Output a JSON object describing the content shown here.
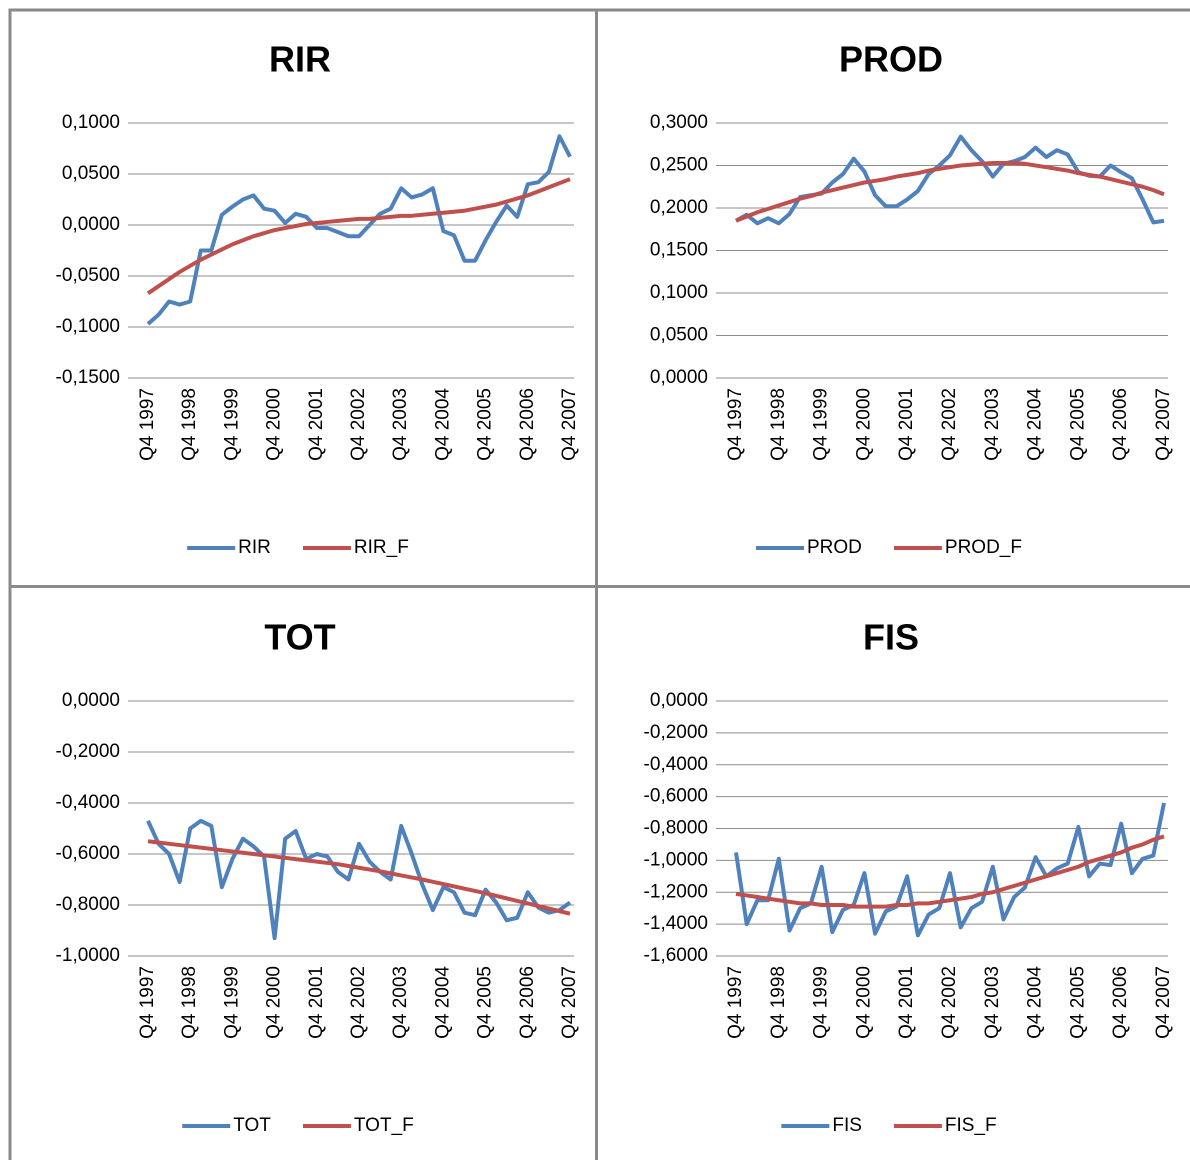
{
  "chart_data": [
    {
      "type": "line",
      "title": "RIR",
      "categories": [
        "Q4 1997",
        null,
        null,
        null,
        "Q4 1998",
        null,
        null,
        null,
        "Q4 1999",
        null,
        null,
        null,
        "Q4 2000",
        null,
        null,
        null,
        "Q4 2001",
        null,
        null,
        null,
        "Q4 2002",
        null,
        null,
        null,
        "Q4 2003",
        null,
        null,
        null,
        "Q4 2004",
        null,
        null,
        null,
        "Q4 2005",
        null,
        null,
        null,
        "Q4 2006",
        null,
        null,
        null,
        "Q4 2007"
      ],
      "series": [
        {
          "name": "RIR",
          "color": "#4f81bd",
          "values": [
            -0.097,
            -0.088,
            -0.075,
            -0.078,
            -0.075,
            -0.025,
            -0.025,
            0.01,
            0.018,
            0.025,
            0.029,
            0.016,
            0.014,
            0.002,
            0.011,
            0.008,
            -0.003,
            -0.003,
            -0.007,
            -0.011,
            -0.011,
            0.0,
            0.011,
            0.016,
            0.036,
            0.027,
            0.03,
            0.036,
            -0.006,
            -0.01,
            -0.035,
            -0.035,
            -0.015,
            0.003,
            0.019,
            0.008,
            0.04,
            0.042,
            0.052,
            0.087,
            0.067
          ]
        },
        {
          "name": "RIR_F",
          "color": "#c0504d",
          "values": [
            -0.067,
            -0.06,
            -0.053,
            -0.046,
            -0.04,
            -0.034,
            -0.029,
            -0.024,
            -0.019,
            -0.015,
            -0.011,
            -0.008,
            -0.005,
            -0.003,
            -0.001,
            0.001,
            0.002,
            0.003,
            0.004,
            0.005,
            0.006,
            0.006,
            0.007,
            0.008,
            0.009,
            0.009,
            0.01,
            0.011,
            0.012,
            0.013,
            0.014,
            0.016,
            0.018,
            0.02,
            0.023,
            0.026,
            0.029,
            0.033,
            0.037,
            0.041,
            0.045
          ]
        }
      ],
      "ylim": [
        -0.15,
        0.1
      ],
      "yticks": [
        {
          "value": -0.15,
          "label": "-0,1500"
        },
        {
          "value": -0.1,
          "label": "-0,1000"
        },
        {
          "value": -0.05,
          "label": "-0,0500"
        },
        {
          "value": 0,
          "label": "0,0000"
        },
        {
          "value": 0.05,
          "label": "0,0500"
        },
        {
          "value": 0.1,
          "label": "0,1000"
        }
      ],
      "grid": true,
      "legend": "bottom"
    },
    {
      "type": "line",
      "title": "PROD",
      "categories": [
        "Q4 1997",
        null,
        null,
        null,
        "Q4 1998",
        null,
        null,
        null,
        "Q4 1999",
        null,
        null,
        null,
        "Q4 2000",
        null,
        null,
        null,
        "Q4 2001",
        null,
        null,
        null,
        "Q4 2002",
        null,
        null,
        null,
        "Q4 2003",
        null,
        null,
        null,
        "Q4 2004",
        null,
        null,
        null,
        "Q4 2005",
        null,
        null,
        null,
        "Q4 2006",
        null,
        null,
        null,
        "Q4 2007"
      ],
      "series": [
        {
          "name": "PROD",
          "color": "#4f81bd",
          "values": [
            0.185,
            0.192,
            0.182,
            0.188,
            0.182,
            0.193,
            0.213,
            0.215,
            0.217,
            0.23,
            0.24,
            0.258,
            0.243,
            0.215,
            0.202,
            0.202,
            0.21,
            0.22,
            0.24,
            0.25,
            0.262,
            0.284,
            0.268,
            0.255,
            0.237,
            0.252,
            0.255,
            0.26,
            0.271,
            0.26,
            0.268,
            0.263,
            0.242,
            0.238,
            0.237,
            0.25,
            0.242,
            0.235,
            0.21,
            0.183,
            0.185
          ]
        },
        {
          "name": "PROD_F",
          "color": "#c0504d",
          "values": [
            0.185,
            0.19,
            0.195,
            0.199,
            0.203,
            0.207,
            0.211,
            0.214,
            0.218,
            0.221,
            0.224,
            0.227,
            0.23,
            0.232,
            0.234,
            0.237,
            0.239,
            0.241,
            0.244,
            0.246,
            0.248,
            0.25,
            0.251,
            0.252,
            0.253,
            0.253,
            0.253,
            0.252,
            0.25,
            0.248,
            0.246,
            0.244,
            0.241,
            0.239,
            0.237,
            0.234,
            0.231,
            0.228,
            0.225,
            0.221,
            0.216
          ]
        }
      ],
      "ylim": [
        0,
        0.3
      ],
      "yticks": [
        {
          "value": 0,
          "label": "0,0000"
        },
        {
          "value": 0.05,
          "label": "0,0500"
        },
        {
          "value": 0.1,
          "label": "0,1000"
        },
        {
          "value": 0.15,
          "label": "0,1500"
        },
        {
          "value": 0.2,
          "label": "0,2000"
        },
        {
          "value": 0.25,
          "label": "0,2500"
        },
        {
          "value": 0.3,
          "label": "0,3000"
        }
      ],
      "grid": true,
      "legend": "bottom"
    },
    {
      "type": "line",
      "title": "TOT",
      "categories": [
        "Q4 1997",
        null,
        null,
        null,
        "Q4 1998",
        null,
        null,
        null,
        "Q4 1999",
        null,
        null,
        null,
        "Q4 2000",
        null,
        null,
        null,
        "Q4 2001",
        null,
        null,
        null,
        "Q4 2002",
        null,
        null,
        null,
        "Q4 2003",
        null,
        null,
        null,
        "Q4 2004",
        null,
        null,
        null,
        "Q4 2005",
        null,
        null,
        null,
        "Q4 2006",
        null,
        null,
        null,
        "Q4 2007"
      ],
      "series": [
        {
          "name": "TOT",
          "color": "#4f81bd",
          "values": [
            -0.47,
            -0.56,
            -0.6,
            -0.71,
            -0.5,
            -0.47,
            -0.49,
            -0.73,
            -0.62,
            -0.54,
            -0.57,
            -0.61,
            -0.93,
            -0.54,
            -0.51,
            -0.62,
            -0.6,
            -0.61,
            -0.67,
            -0.7,
            -0.56,
            -0.63,
            -0.67,
            -0.7,
            -0.49,
            -0.6,
            -0.72,
            -0.82,
            -0.73,
            -0.75,
            -0.83,
            -0.84,
            -0.74,
            -0.79,
            -0.86,
            -0.85,
            -0.75,
            -0.81,
            -0.83,
            -0.82,
            -0.79
          ]
        },
        {
          "name": "TOT_F",
          "color": "#c0504d",
          "values": [
            -0.55,
            -0.555,
            -0.56,
            -0.565,
            -0.57,
            -0.575,
            -0.58,
            -0.585,
            -0.59,
            -0.595,
            -0.6,
            -0.605,
            -0.61,
            -0.615,
            -0.62,
            -0.625,
            -0.63,
            -0.635,
            -0.64,
            -0.647,
            -0.654,
            -0.661,
            -0.668,
            -0.676,
            -0.684,
            -0.692,
            -0.7,
            -0.709,
            -0.718,
            -0.727,
            -0.736,
            -0.745,
            -0.754,
            -0.764,
            -0.774,
            -0.784,
            -0.794,
            -0.804,
            -0.814,
            -0.824,
            -0.834
          ]
        }
      ],
      "ylim": [
        -1,
        0
      ],
      "yticks": [
        {
          "value": -1,
          "label": "-1,0000"
        },
        {
          "value": -0.8,
          "label": "-0,8000"
        },
        {
          "value": -0.6,
          "label": "-0,6000"
        },
        {
          "value": -0.4,
          "label": "-0,4000"
        },
        {
          "value": -0.2,
          "label": "-0,2000"
        },
        {
          "value": 0,
          "label": "0,0000"
        }
      ],
      "grid": true,
      "legend": "bottom"
    },
    {
      "type": "line",
      "title": "FIS",
      "categories": [
        "Q4 1997",
        null,
        null,
        null,
        "Q4 1998",
        null,
        null,
        null,
        "Q4 1999",
        null,
        null,
        null,
        "Q4 2000",
        null,
        null,
        null,
        "Q4 2001",
        null,
        null,
        null,
        "Q4 2002",
        null,
        null,
        null,
        "Q4 2003",
        null,
        null,
        null,
        "Q4 2004",
        null,
        null,
        null,
        "Q4 2005",
        null,
        null,
        null,
        "Q4 2006",
        null,
        null,
        null,
        "Q4 2007"
      ],
      "series": [
        {
          "name": "FIS",
          "color": "#4f81bd",
          "values": [
            -0.95,
            -1.4,
            -1.25,
            -1.25,
            -0.99,
            -1.44,
            -1.3,
            -1.27,
            -1.04,
            -1.45,
            -1.31,
            -1.28,
            -1.08,
            -1.46,
            -1.32,
            -1.29,
            -1.1,
            -1.47,
            -1.34,
            -1.3,
            -1.08,
            -1.42,
            -1.3,
            -1.26,
            -1.04,
            -1.37,
            -1.23,
            -1.17,
            -0.98,
            -1.1,
            -1.05,
            -1.02,
            -0.79,
            -1.1,
            -1.02,
            -1.03,
            -0.77,
            -1.08,
            -0.99,
            -0.97,
            -0.64
          ]
        },
        {
          "name": "FIS_F",
          "color": "#c0504d",
          "values": [
            -1.21,
            -1.22,
            -1.23,
            -1.24,
            -1.25,
            -1.26,
            -1.27,
            -1.27,
            -1.28,
            -1.28,
            -1.28,
            -1.29,
            -1.29,
            -1.29,
            -1.29,
            -1.28,
            -1.28,
            -1.27,
            -1.27,
            -1.26,
            -1.25,
            -1.24,
            -1.23,
            -1.21,
            -1.2,
            -1.18,
            -1.16,
            -1.14,
            -1.12,
            -1.1,
            -1.08,
            -1.06,
            -1.04,
            -1.01,
            -0.99,
            -0.97,
            -0.95,
            -0.92,
            -0.9,
            -0.87,
            -0.85
          ]
        }
      ],
      "ylim": [
        -1.6,
        0
      ],
      "yticks": [
        {
          "value": -1.6,
          "label": "-1,6000"
        },
        {
          "value": -1.4,
          "label": "-1,4000"
        },
        {
          "value": -1.2,
          "label": "-1,2000"
        },
        {
          "value": -1,
          "label": "-1,0000"
        },
        {
          "value": -0.8,
          "label": "-0,8000"
        },
        {
          "value": -0.6,
          "label": "-0,6000"
        },
        {
          "value": -0.4,
          "label": "-0,4000"
        },
        {
          "value": -0.2,
          "label": "-0,2000"
        },
        {
          "value": 0,
          "label": "0,0000"
        }
      ],
      "grid": true,
      "legend": "bottom"
    }
  ]
}
